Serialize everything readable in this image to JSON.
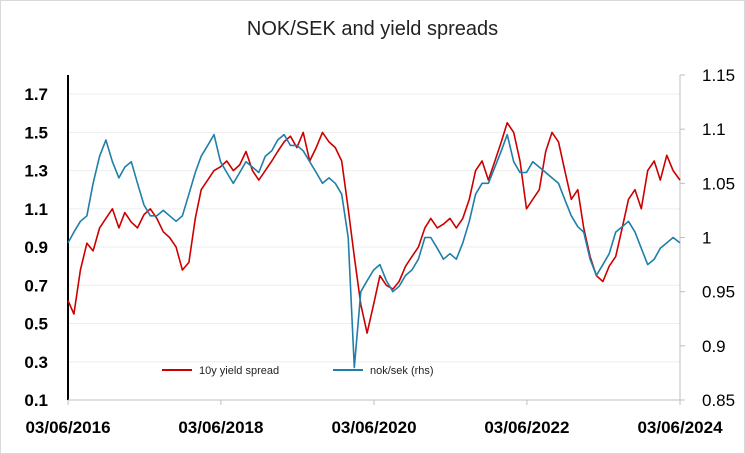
{
  "chart_data": {
    "type": "line",
    "title": "NOK/SEK and yield spreads",
    "x_tick_labels": [
      "03/06/2016",
      "03/06/2018",
      "03/06/2020",
      "03/06/2022",
      "03/06/2024"
    ],
    "x_range": [
      "2016-06-03",
      "2024-06-03"
    ],
    "y_left": {
      "ticks": [
        0.1,
        0.3,
        0.5,
        0.7,
        0.9,
        1.1,
        1.3,
        1.5,
        1.7
      ],
      "range": [
        0.1,
        1.8
      ]
    },
    "y_right": {
      "ticks": [
        0.85,
        0.9,
        0.95,
        1,
        1.05,
        1.1,
        1.15
      ],
      "range": [
        0.85,
        1.15
      ]
    },
    "grid": true,
    "legend_position": "bottom-center",
    "series": [
      {
        "name": "10y yield spread",
        "axis": "left",
        "color": "#cc0000",
        "points": [
          [
            "2016-06-03",
            0.62
          ],
          [
            "2016-07-01",
            0.55
          ],
          [
            "2016-08-01",
            0.78
          ],
          [
            "2016-09-01",
            0.92
          ],
          [
            "2016-10-01",
            0.88
          ],
          [
            "2016-11-01",
            1.0
          ],
          [
            "2016-12-01",
            1.05
          ],
          [
            "2017-01-01",
            1.1
          ],
          [
            "2017-02-01",
            1.0
          ],
          [
            "2017-03-01",
            1.08
          ],
          [
            "2017-04-01",
            1.03
          ],
          [
            "2017-05-01",
            1.0
          ],
          [
            "2017-06-01",
            1.07
          ],
          [
            "2017-07-01",
            1.1
          ],
          [
            "2017-08-01",
            1.05
          ],
          [
            "2017-09-01",
            0.98
          ],
          [
            "2017-10-01",
            0.95
          ],
          [
            "2017-11-01",
            0.9
          ],
          [
            "2017-12-01",
            0.78
          ],
          [
            "2018-01-01",
            0.82
          ],
          [
            "2018-02-01",
            1.05
          ],
          [
            "2018-03-01",
            1.2
          ],
          [
            "2018-04-01",
            1.25
          ],
          [
            "2018-05-01",
            1.3
          ],
          [
            "2018-06-01",
            1.32
          ],
          [
            "2018-07-01",
            1.35
          ],
          [
            "2018-08-01",
            1.3
          ],
          [
            "2018-09-01",
            1.33
          ],
          [
            "2018-10-01",
            1.4
          ],
          [
            "2018-11-01",
            1.3
          ],
          [
            "2018-12-01",
            1.25
          ],
          [
            "2019-01-01",
            1.3
          ],
          [
            "2019-02-01",
            1.35
          ],
          [
            "2019-03-01",
            1.4
          ],
          [
            "2019-04-01",
            1.45
          ],
          [
            "2019-05-01",
            1.48
          ],
          [
            "2019-06-01",
            1.42
          ],
          [
            "2019-07-01",
            1.5
          ],
          [
            "2019-08-01",
            1.35
          ],
          [
            "2019-09-01",
            1.42
          ],
          [
            "2019-10-01",
            1.5
          ],
          [
            "2019-11-01",
            1.45
          ],
          [
            "2019-12-01",
            1.42
          ],
          [
            "2020-01-01",
            1.35
          ],
          [
            "2020-02-01",
            1.1
          ],
          [
            "2020-03-01",
            0.85
          ],
          [
            "2020-04-01",
            0.6
          ],
          [
            "2020-05-01",
            0.45
          ],
          [
            "2020-06-01",
            0.6
          ],
          [
            "2020-07-01",
            0.75
          ],
          [
            "2020-08-01",
            0.7
          ],
          [
            "2020-09-01",
            0.68
          ],
          [
            "2020-10-01",
            0.72
          ],
          [
            "2020-11-01",
            0.8
          ],
          [
            "2020-12-01",
            0.85
          ],
          [
            "2021-01-01",
            0.9
          ],
          [
            "2021-02-01",
            1.0
          ],
          [
            "2021-03-01",
            1.05
          ],
          [
            "2021-04-01",
            1.0
          ],
          [
            "2021-05-01",
            1.02
          ],
          [
            "2021-06-01",
            1.05
          ],
          [
            "2021-07-01",
            1.0
          ],
          [
            "2021-08-01",
            1.05
          ],
          [
            "2021-09-01",
            1.15
          ],
          [
            "2021-10-01",
            1.3
          ],
          [
            "2021-11-01",
            1.35
          ],
          [
            "2021-12-01",
            1.25
          ],
          [
            "2022-01-01",
            1.35
          ],
          [
            "2022-02-01",
            1.45
          ],
          [
            "2022-03-01",
            1.55
          ],
          [
            "2022-04-01",
            1.5
          ],
          [
            "2022-05-01",
            1.35
          ],
          [
            "2022-06-01",
            1.1
          ],
          [
            "2022-07-01",
            1.15
          ],
          [
            "2022-08-01",
            1.2
          ],
          [
            "2022-09-01",
            1.4
          ],
          [
            "2022-10-01",
            1.5
          ],
          [
            "2022-11-01",
            1.45
          ],
          [
            "2022-12-01",
            1.3
          ],
          [
            "2023-01-01",
            1.15
          ],
          [
            "2023-02-01",
            1.2
          ],
          [
            "2023-03-01",
            1.0
          ],
          [
            "2023-04-01",
            0.85
          ],
          [
            "2023-05-01",
            0.75
          ],
          [
            "2023-06-01",
            0.72
          ],
          [
            "2023-07-01",
            0.8
          ],
          [
            "2023-08-01",
            0.85
          ],
          [
            "2023-09-01",
            1.0
          ],
          [
            "2023-10-01",
            1.15
          ],
          [
            "2023-11-01",
            1.2
          ],
          [
            "2023-12-01",
            1.1
          ],
          [
            "2024-01-01",
            1.3
          ],
          [
            "2024-02-01",
            1.35
          ],
          [
            "2024-03-01",
            1.25
          ],
          [
            "2024-04-01",
            1.38
          ],
          [
            "2024-05-01",
            1.3
          ],
          [
            "2024-06-03",
            1.25
          ]
        ]
      },
      {
        "name": "nok/sek (rhs)",
        "axis": "right",
        "color": "#1f7fa8",
        "points": [
          [
            "2016-06-03",
            0.995
          ],
          [
            "2016-07-01",
            1.005
          ],
          [
            "2016-08-01",
            1.015
          ],
          [
            "2016-09-01",
            1.02
          ],
          [
            "2016-10-01",
            1.05
          ],
          [
            "2016-11-01",
            1.075
          ],
          [
            "2016-12-01",
            1.09
          ],
          [
            "2017-01-01",
            1.07
          ],
          [
            "2017-02-01",
            1.055
          ],
          [
            "2017-03-01",
            1.065
          ],
          [
            "2017-04-01",
            1.07
          ],
          [
            "2017-05-01",
            1.05
          ],
          [
            "2017-06-01",
            1.03
          ],
          [
            "2017-07-01",
            1.02
          ],
          [
            "2017-08-01",
            1.02
          ],
          [
            "2017-09-01",
            1.025
          ],
          [
            "2017-10-01",
            1.02
          ],
          [
            "2017-11-01",
            1.015
          ],
          [
            "2017-12-01",
            1.02
          ],
          [
            "2018-01-01",
            1.04
          ],
          [
            "2018-02-01",
            1.06
          ],
          [
            "2018-03-01",
            1.075
          ],
          [
            "2018-04-01",
            1.085
          ],
          [
            "2018-05-01",
            1.095
          ],
          [
            "2018-06-01",
            1.07
          ],
          [
            "2018-07-01",
            1.06
          ],
          [
            "2018-08-01",
            1.05
          ],
          [
            "2018-09-01",
            1.06
          ],
          [
            "2018-10-01",
            1.07
          ],
          [
            "2018-11-01",
            1.065
          ],
          [
            "2018-12-01",
            1.06
          ],
          [
            "2019-01-01",
            1.075
          ],
          [
            "2019-02-01",
            1.08
          ],
          [
            "2019-03-01",
            1.09
          ],
          [
            "2019-04-01",
            1.095
          ],
          [
            "2019-05-01",
            1.085
          ],
          [
            "2019-06-01",
            1.085
          ],
          [
            "2019-07-01",
            1.08
          ],
          [
            "2019-08-01",
            1.07
          ],
          [
            "2019-09-01",
            1.06
          ],
          [
            "2019-10-01",
            1.05
          ],
          [
            "2019-11-01",
            1.055
          ],
          [
            "2019-12-01",
            1.05
          ],
          [
            "2020-01-01",
            1.04
          ],
          [
            "2020-02-01",
            1.0
          ],
          [
            "2020-03-01",
            0.88
          ],
          [
            "2020-04-01",
            0.95
          ],
          [
            "2020-05-01",
            0.96
          ],
          [
            "2020-06-01",
            0.97
          ],
          [
            "2020-07-01",
            0.975
          ],
          [
            "2020-08-01",
            0.96
          ],
          [
            "2020-09-01",
            0.95
          ],
          [
            "2020-10-01",
            0.955
          ],
          [
            "2020-11-01",
            0.965
          ],
          [
            "2020-12-01",
            0.97
          ],
          [
            "2021-01-01",
            0.98
          ],
          [
            "2021-02-01",
            1.0
          ],
          [
            "2021-03-01",
            1.0
          ],
          [
            "2021-04-01",
            0.99
          ],
          [
            "2021-05-01",
            0.98
          ],
          [
            "2021-06-01",
            0.985
          ],
          [
            "2021-07-01",
            0.98
          ],
          [
            "2021-08-01",
            0.995
          ],
          [
            "2021-09-01",
            1.015
          ],
          [
            "2021-10-01",
            1.04
          ],
          [
            "2021-11-01",
            1.05
          ],
          [
            "2021-12-01",
            1.05
          ],
          [
            "2022-01-01",
            1.065
          ],
          [
            "2022-02-01",
            1.08
          ],
          [
            "2022-03-01",
            1.095
          ],
          [
            "2022-04-01",
            1.07
          ],
          [
            "2022-05-01",
            1.06
          ],
          [
            "2022-06-01",
            1.06
          ],
          [
            "2022-07-01",
            1.07
          ],
          [
            "2022-08-01",
            1.065
          ],
          [
            "2022-09-01",
            1.06
          ],
          [
            "2022-10-01",
            1.055
          ],
          [
            "2022-11-01",
            1.05
          ],
          [
            "2022-12-01",
            1.035
          ],
          [
            "2023-01-01",
            1.02
          ],
          [
            "2023-02-01",
            1.01
          ],
          [
            "2023-03-01",
            1.005
          ],
          [
            "2023-04-01",
            0.98
          ],
          [
            "2023-05-01",
            0.965
          ],
          [
            "2023-06-01",
            0.975
          ],
          [
            "2023-07-01",
            0.985
          ],
          [
            "2023-08-01",
            1.005
          ],
          [
            "2023-09-01",
            1.01
          ],
          [
            "2023-10-01",
            1.015
          ],
          [
            "2023-11-01",
            1.005
          ],
          [
            "2023-12-01",
            0.99
          ],
          [
            "2024-01-01",
            0.975
          ],
          [
            "2024-02-01",
            0.98
          ],
          [
            "2024-03-01",
            0.99
          ],
          [
            "2024-04-01",
            0.995
          ],
          [
            "2024-05-01",
            1.0
          ],
          [
            "2024-06-03",
            0.995
          ]
        ]
      }
    ]
  }
}
